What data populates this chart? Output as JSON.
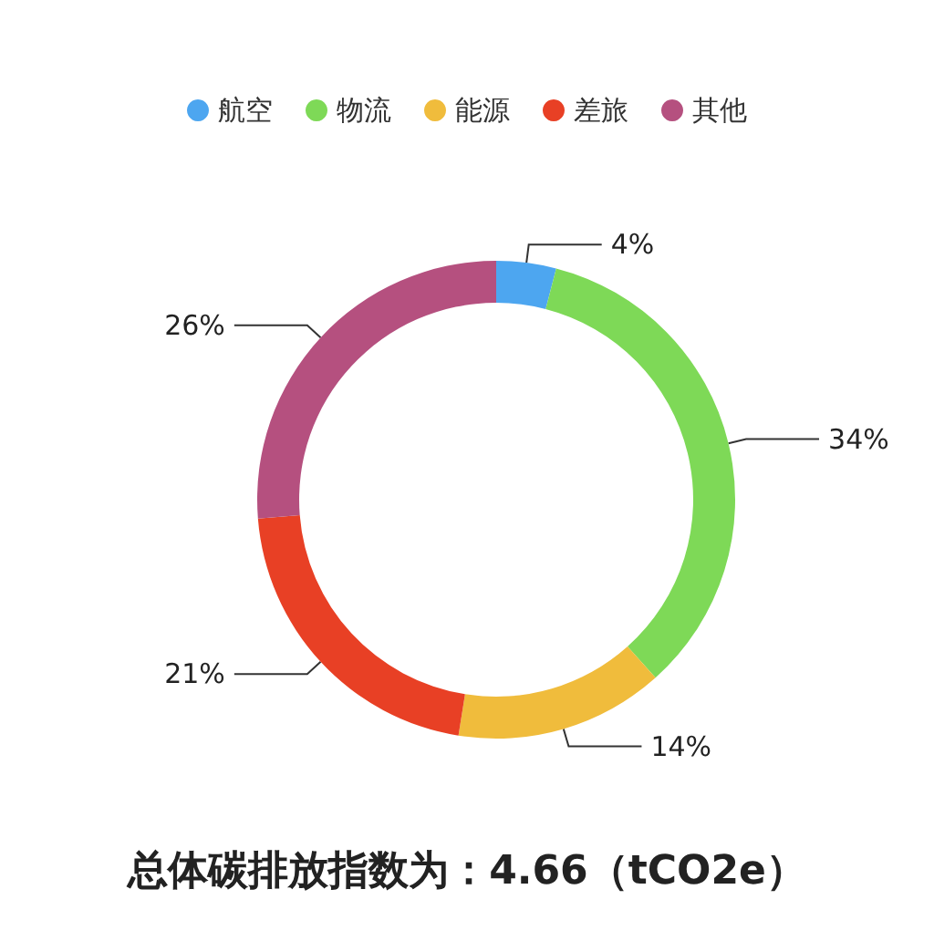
{
  "chart_data": {
    "type": "donut",
    "title": "总体碳排放指数为：4.66（tCO2e）",
    "categories": [
      "航空",
      "物流",
      "能源",
      "差旅",
      "其他"
    ],
    "values": [
      4,
      34,
      14,
      21,
      26
    ],
    "colors": [
      "#4da6f0",
      "#7ed957",
      "#f0bc3c",
      "#e84025",
      "#b5507f"
    ],
    "value_labels": [
      "4%",
      "34%",
      "14%",
      "21%",
      "26%"
    ],
    "legend": "top"
  }
}
